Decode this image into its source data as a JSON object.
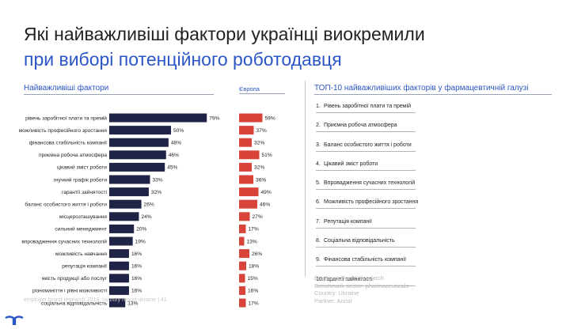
{
  "header": {
    "title_line1": "Які найважливіші фактори українці виокремили",
    "title_line2": "при виборі потенційного роботодавця"
  },
  "left_section_title": "Найважливіші фактори",
  "europe_label": "Європа",
  "right_section_title": "ТОП-10 найважливіших факторів у фармацевтичній галузі",
  "colors": {
    "ukraine_bar": "#1f2345",
    "europe_bar": "#d9443a",
    "accent": "#2b56c6"
  },
  "chart_data": {
    "type": "bar",
    "orientation": "horizontal",
    "categories": [
      "рівень заробітної плати та премій",
      "можливість професійного зростання",
      "фінансова стабільність компанії",
      "приємна робоча атмосфера",
      "цікавий зміст роботи",
      "гнучкий графік роботи",
      "гарантії зайнятості",
      "баланс особистого життя і роботи",
      "місцерозташування",
      "сильний менеджмент",
      "впровадження сучасних технологій",
      "можливість навчання",
      "репутація компанії",
      "якість продукції або послуг",
      "різноманіття і рівні можливості",
      "соціальна відповідальність"
    ],
    "series": [
      {
        "values": [
          79,
          50,
          48,
          46,
          45,
          33,
          32,
          26,
          24,
          20,
          19,
          16,
          16,
          16,
          16,
          13
        ],
        "labels": [
          "79%",
          "50%",
          "48%",
          "46%",
          "45%",
          "33%",
          "32%",
          "26%",
          "24%",
          "20%",
          "19%",
          "16%",
          "16%",
          "16%",
          "16%",
          "13%"
        ]
      },
      {
        "name": "Європа",
        "values": [
          59,
          37,
          32,
          51,
          32,
          36,
          49,
          46,
          27,
          17,
          13,
          26,
          18,
          15,
          16,
          17
        ],
        "labels": [
          "59%",
          "37%",
          "32%",
          "51%",
          "32%",
          "36%",
          "49%",
          "46%",
          "27%",
          "17%",
          "13%",
          "26%",
          "18%",
          "15%",
          "16%",
          "17%"
        ]
      }
    ]
  },
  "top10": [
    {
      "num": "1.",
      "label": "Рівень заробітної плати та премій"
    },
    {
      "num": "2.",
      "label": "Приємна робоча атмосфера"
    },
    {
      "num": "3.",
      "label": "Баланс особистого життя і роботи"
    },
    {
      "num": "4.",
      "label": "Цікавий зміст роботи"
    },
    {
      "num": "5.",
      "label": "Впровадження сучасних технологій"
    },
    {
      "num": "6.",
      "label": "Можливість професійного зростання"
    },
    {
      "num": "7.",
      "label": "Репутація компанії"
    },
    {
      "num": "8.",
      "label": "Соціальна відповідальність"
    },
    {
      "num": "9.",
      "label": "Фінансова стабільність компанії"
    },
    {
      "num": "10.",
      "label": "Гарантії зайнятості"
    }
  ],
  "info": {
    "line1": "Employer Brand Research",
    "line2": "Benchmark sector: pharmaceuticals",
    "line3": "Country: Ukraine",
    "line4": "Partner: Ancor"
  },
  "footer": {
    "text": "employer brand research 2019, country report ukraine  |  41"
  }
}
